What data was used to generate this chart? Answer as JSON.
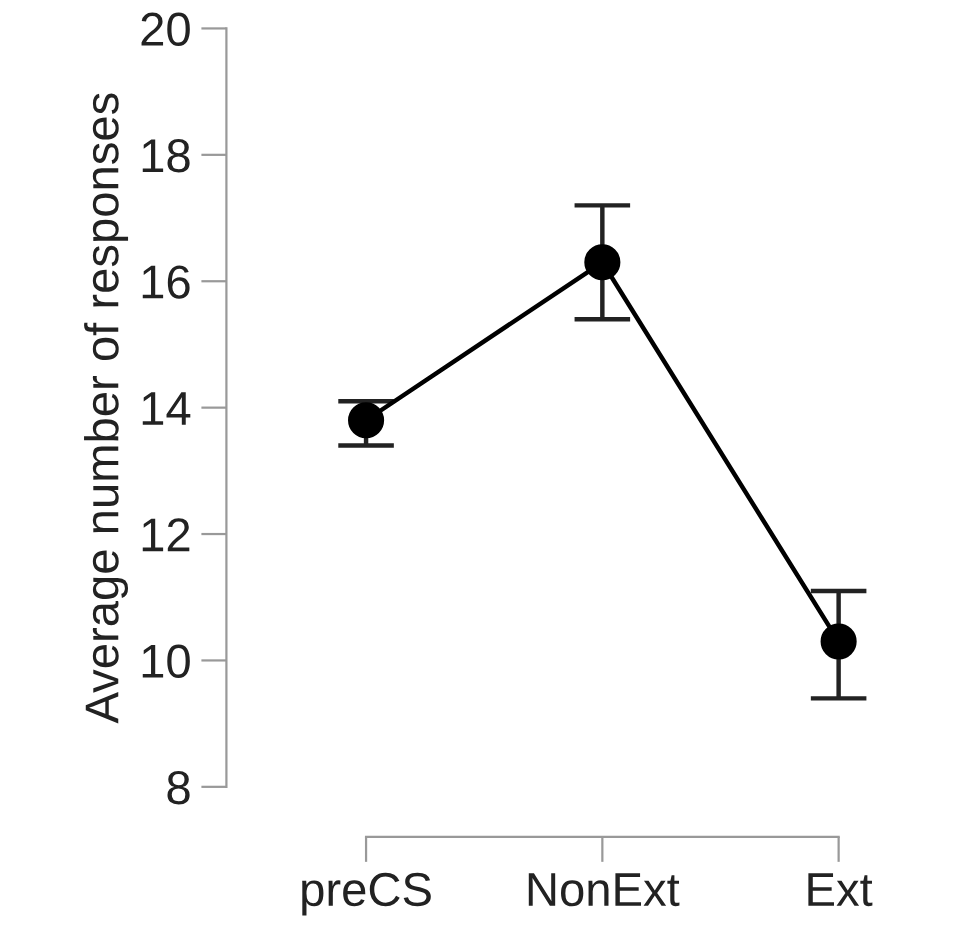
{
  "chart_data": {
    "type": "line",
    "ylabel": "Average number of responses",
    "categories": [
      "preCS",
      "NonExt",
      "Ext"
    ],
    "series": [
      {
        "color": "#000000",
        "values": [
          13.8,
          16.3,
          10.3
        ],
        "errors": [
          [
            13.4,
            14.1
          ],
          [
            15.4,
            17.2
          ],
          [
            9.4,
            11.1
          ]
        ]
      }
    ],
    "ylim": [
      8,
      20
    ],
    "yticks": [
      8,
      10,
      12,
      14,
      16,
      18,
      20
    ],
    "marker": "circle",
    "line_style": "solid",
    "grid": false,
    "legend": false
  }
}
